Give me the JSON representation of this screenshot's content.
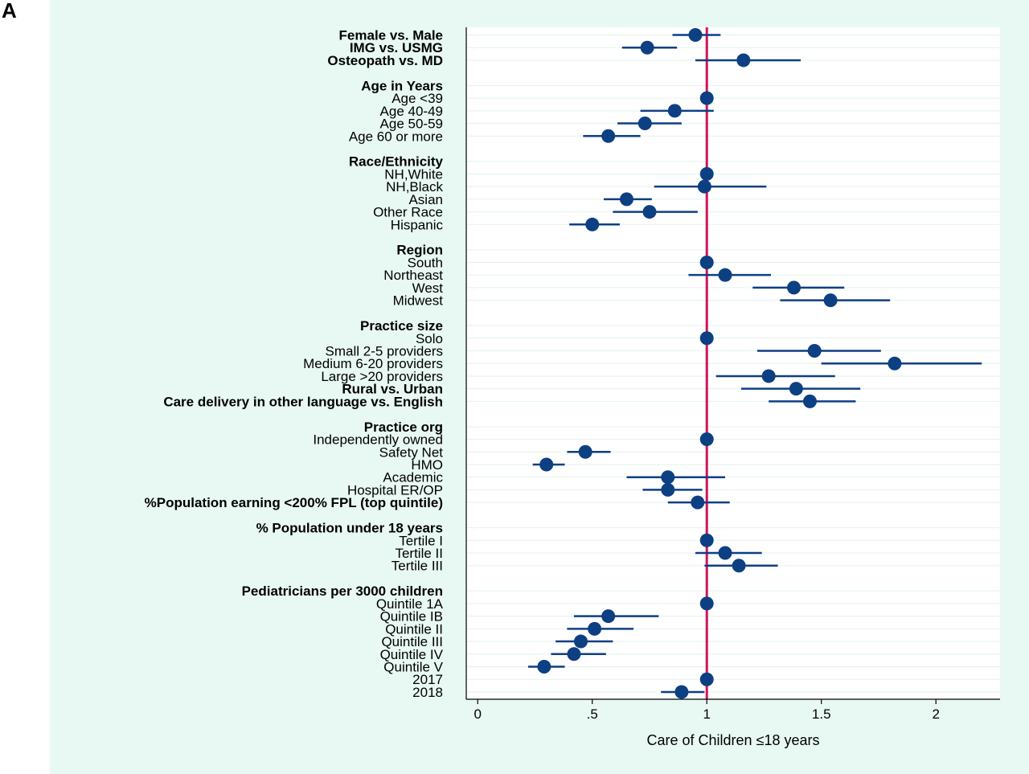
{
  "panel_letter": "A",
  "chart_data": {
    "type": "forest",
    "title": "",
    "xlabel": "Care of Children ≤18 years",
    "ylabel": "",
    "xlim": [
      -0.05,
      2.28
    ],
    "xticks": [
      0,
      0.5,
      1,
      1.5,
      2
    ],
    "xtick_labels": [
      "0",
      ".5",
      "1",
      "1.5",
      "2"
    ],
    "reference_line": 1,
    "colors": {
      "background": "#e8f8f3",
      "plot_background": "#ffffff",
      "marker": "#0d3f83",
      "reference_line": "#d0145a",
      "gridline": "#e3f3ee"
    },
    "rows": [
      {
        "label": "Female vs. Male",
        "bold": true,
        "estimate": 0.95,
        "ci_low": 0.85,
        "ci_high": 1.06
      },
      {
        "label": "IMG vs. USMG",
        "bold": true,
        "estimate": 0.74,
        "ci_low": 0.63,
        "ci_high": 0.87
      },
      {
        "label": "Osteopath vs. MD",
        "bold": true,
        "estimate": 1.16,
        "ci_low": 0.95,
        "ci_high": 1.41
      },
      {
        "label": "",
        "bold": false
      },
      {
        "label": "Age in Years",
        "bold": true
      },
      {
        "label": "Age <39",
        "bold": false,
        "estimate": 1.0
      },
      {
        "label": "Age 40-49",
        "bold": false,
        "estimate": 0.86,
        "ci_low": 0.71,
        "ci_high": 1.03
      },
      {
        "label": "Age 50-59",
        "bold": false,
        "estimate": 0.73,
        "ci_low": 0.61,
        "ci_high": 0.89
      },
      {
        "label": "Age 60 or more",
        "bold": false,
        "estimate": 0.57,
        "ci_low": 0.46,
        "ci_high": 0.71
      },
      {
        "label": "",
        "bold": false
      },
      {
        "label": "Race/Ethnicity",
        "bold": true
      },
      {
        "label": "NH,White",
        "bold": false,
        "estimate": 1.0
      },
      {
        "label": "NH,Black",
        "bold": false,
        "estimate": 0.99,
        "ci_low": 0.77,
        "ci_high": 1.26
      },
      {
        "label": "Asian",
        "bold": false,
        "estimate": 0.65,
        "ci_low": 0.55,
        "ci_high": 0.76
      },
      {
        "label": "Other Race",
        "bold": false,
        "estimate": 0.75,
        "ci_low": 0.59,
        "ci_high": 0.96
      },
      {
        "label": "Hispanic",
        "bold": false,
        "estimate": 0.5,
        "ci_low": 0.4,
        "ci_high": 0.62
      },
      {
        "label": "",
        "bold": false
      },
      {
        "label": "Region",
        "bold": true
      },
      {
        "label": "South",
        "bold": false,
        "estimate": 1.0
      },
      {
        "label": "Northeast",
        "bold": false,
        "estimate": 1.08,
        "ci_low": 0.92,
        "ci_high": 1.28
      },
      {
        "label": "West",
        "bold": false,
        "estimate": 1.38,
        "ci_low": 1.2,
        "ci_high": 1.6
      },
      {
        "label": "Midwest",
        "bold": false,
        "estimate": 1.54,
        "ci_low": 1.32,
        "ci_high": 1.8
      },
      {
        "label": "",
        "bold": false
      },
      {
        "label": "Practice size",
        "bold": true
      },
      {
        "label": "Solo",
        "bold": false,
        "estimate": 1.0
      },
      {
        "label": "Small 2-5 providers",
        "bold": false,
        "estimate": 1.47,
        "ci_low": 1.22,
        "ci_high": 1.76
      },
      {
        "label": "Medium 6-20 providers",
        "bold": false,
        "estimate": 1.82,
        "ci_low": 1.5,
        "ci_high": 2.2
      },
      {
        "label": "Large >20 providers",
        "bold": false,
        "estimate": 1.27,
        "ci_low": 1.04,
        "ci_high": 1.56
      },
      {
        "label": "Rural vs. Urban",
        "bold": true,
        "estimate": 1.39,
        "ci_low": 1.15,
        "ci_high": 1.67
      },
      {
        "label": "Care delivery in other language vs. English",
        "bold": true,
        "estimate": 1.45,
        "ci_low": 1.27,
        "ci_high": 1.65
      },
      {
        "label": "",
        "bold": false
      },
      {
        "label": "Practice org",
        "bold": true
      },
      {
        "label": "Independently  owned",
        "bold": false,
        "estimate": 1.0
      },
      {
        "label": "Safety  Net",
        "bold": false,
        "estimate": 0.47,
        "ci_low": 0.39,
        "ci_high": 0.58
      },
      {
        "label": "HMO",
        "bold": false,
        "estimate": 0.3,
        "ci_low": 0.24,
        "ci_high": 0.38
      },
      {
        "label": "Academic",
        "bold": false,
        "estimate": 0.83,
        "ci_low": 0.65,
        "ci_high": 1.08
      },
      {
        "label": "Hospital ER/OP",
        "bold": false,
        "estimate": 0.83,
        "ci_low": 0.72,
        "ci_high": 0.98
      },
      {
        "label": "%Population earning <200% FPL (top quintile)",
        "bold": true,
        "estimate": 0.96,
        "ci_low": 0.83,
        "ci_high": 1.1
      },
      {
        "label": "",
        "bold": false
      },
      {
        "label": "% Population under 18 years",
        "bold": true
      },
      {
        "label": "Tertile I",
        "bold": false,
        "estimate": 1.0
      },
      {
        "label": "Tertile II",
        "bold": false,
        "estimate": 1.08,
        "ci_low": 0.95,
        "ci_high": 1.24
      },
      {
        "label": "Tertile III",
        "bold": false,
        "estimate": 1.14,
        "ci_low": 0.99,
        "ci_high": 1.31
      },
      {
        "label": "",
        "bold": false
      },
      {
        "label": "Pediatricians per 3000 children",
        "bold": true
      },
      {
        "label": "Quintile 1A",
        "bold": false,
        "estimate": 1.0
      },
      {
        "label": "Quintile IB",
        "bold": false,
        "estimate": 0.57,
        "ci_low": 0.42,
        "ci_high": 0.79
      },
      {
        "label": "Quintile II",
        "bold": false,
        "estimate": 0.51,
        "ci_low": 0.39,
        "ci_high": 0.68
      },
      {
        "label": "Quintile III",
        "bold": false,
        "estimate": 0.45,
        "ci_low": 0.34,
        "ci_high": 0.59
      },
      {
        "label": "Quintile IV",
        "bold": false,
        "estimate": 0.42,
        "ci_low": 0.32,
        "ci_high": 0.56
      },
      {
        "label": "Quintile V",
        "bold": false,
        "estimate": 0.29,
        "ci_low": 0.22,
        "ci_high": 0.38
      },
      {
        "label": "2017",
        "bold": false,
        "estimate": 1.0
      },
      {
        "label": "2018",
        "bold": false,
        "estimate": 0.89,
        "ci_low": 0.8,
        "ci_high": 0.99
      }
    ]
  }
}
